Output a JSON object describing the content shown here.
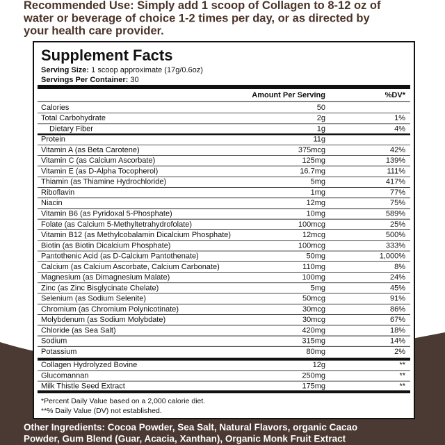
{
  "recommended_use": {
    "label": "Recommended Use:",
    "lines": [
      "Simply add 1 scoop of Collagen to 8-12 oz of",
      "water or beverage of choice 1-2 times per day, or as directed by",
      "your health care provider."
    ]
  },
  "facts": {
    "title": "Supplement Facts",
    "serving_size": {
      "label": "Serving Size:",
      "value": "1 scoop approximate (17g/0.6oz)"
    },
    "servings": {
      "label": "Servings Per Container:",
      "value": "30"
    },
    "header": {
      "amount": "Amount Per Serving",
      "dv": "%DV*"
    },
    "groups": [
      [
        [
          "Calories",
          "50"
        ],
        [
          "Total Carbohydrate",
          "2g",
          "1%"
        ],
        [
          "Dietary Fiber",
          "1g",
          "4%"
        ]
      ],
      [
        [
          "Protein",
          "11g"
        ],
        [
          "Vitamin A (as Beta Carotene)",
          "375mcg",
          "42%"
        ],
        [
          "Vitamin C (as Calcium Ascorbate)",
          "125mg",
          "139%"
        ],
        [
          "Vitamin E (as D-Alpha Tocopherol)",
          "16.7mg",
          "111%"
        ],
        [
          "Thiamin (as Thiamine Hydrochloride)",
          "5mg",
          "417%"
        ],
        [
          "Riboflavin",
          "1mg",
          "77%"
        ],
        [
          "Niacin",
          "12mg",
          "75%"
        ],
        [
          "Vitamin B6 (as Pyridoxal 5-Phosphate)",
          "10mg",
          "589%"
        ],
        [
          "Folate (as Calcium 5-Methyltetrahydrofolate)",
          "100mcg",
          "25%"
        ],
        [
          "Vitamin B12 (as Methylcobalamin Dicalcium Phosphate)",
          "12mcg",
          "500%"
        ],
        [
          "Biotin (as Biotin Dicalcium Phosphate)",
          "100mcg",
          "333%"
        ],
        [
          "Pantothenic Acid (as D-Calcium Pantothenate)",
          "50mg",
          "1,000%"
        ],
        [
          "Calcium (as Calcium Ascorbate, Calcium Carbonate)",
          "110mg",
          "8%"
        ],
        [
          "Magnesium (as Dimagnesium Malate)",
          "100mg",
          "24%"
        ],
        [
          "Zinc (as Zinc Bisglycinate Chelate)",
          "5mg",
          "45%"
        ],
        [
          "Selenium (as Sodium Selenite)",
          "50mcg",
          "91%"
        ],
        [
          "Chromium (as Chromium Polynicotinate)",
          "30mcg",
          "86%"
        ],
        [
          "Molybdenum (as Sodium Molybdate)",
          "30mcg",
          "67%"
        ],
        [
          "Chloride (as Sea Salt)",
          "420mg",
          "18%"
        ],
        [
          "Sodium",
          "315mg",
          "14%"
        ],
        [
          "Potassium",
          "80mg",
          "2%"
        ]
      ],
      [
        [
          "Collagen Hydrolyzed Bovine",
          "12g",
          "**"
        ],
        [
          "Glucomannan",
          "250mg",
          "**"
        ],
        [
          "Milk Thistle Seed Extract",
          "175mg",
          "**"
        ]
      ]
    ],
    "footnotes": [
      "*Percent Daily Value based on a 2,000 calorie diet.",
      "**% Daily Value (DV) not established."
    ]
  },
  "other_ingredients": {
    "label": "Other Ingredients:",
    "lines": [
      "Cocoa Powder, Sea Salt, Natural Flavors, organic Cacao",
      "Powder, Gum Blend (Guar, Acacia, Xanthan), Organic Monk Fruit Extract"
    ]
  }
}
